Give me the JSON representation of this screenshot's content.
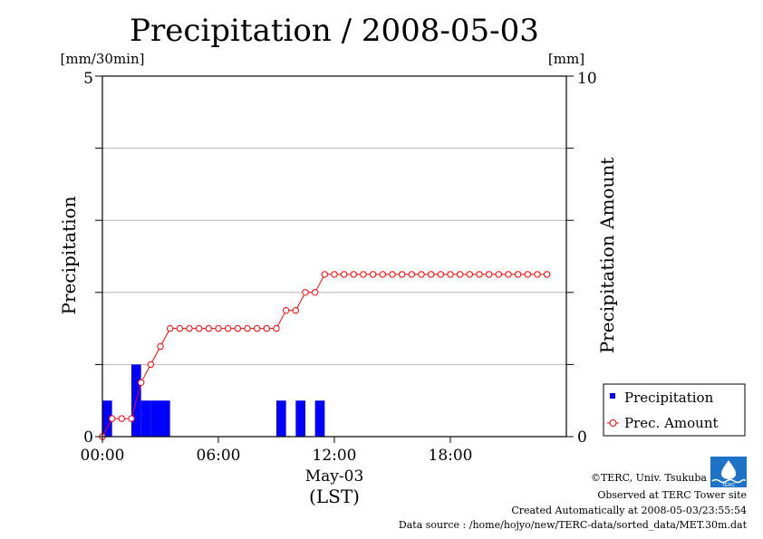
{
  "chart_data": {
    "type": "bar",
    "title": "Precipitation / 2008-05-03",
    "ylabel_left": "Precipitation",
    "ylabel_right": "Precipitation Amount",
    "unit_left": "[mm/30min]",
    "unit_right": "[mm]",
    "y_left_range": [
      0,
      5
    ],
    "y_right_range": [
      0,
      10
    ],
    "y_left_ticks": [
      "0",
      "5"
    ],
    "y_right_ticks": [
      "0",
      "10"
    ],
    "x_range_hours": [
      0,
      24
    ],
    "x_ticks": [
      {
        "hour": 0,
        "label": "00:00"
      },
      {
        "hour": 6,
        "label": "06:00"
      },
      {
        "hour": 12,
        "label": "12:00"
      },
      {
        "hour": 18,
        "label": "18:00"
      }
    ],
    "x_date_label": "May-03",
    "x_zone_label": "(LST)",
    "grid_y": true,
    "legend_position": "bottom-right",
    "series": [
      {
        "name": "Precipitation",
        "kind": "bar",
        "color": "#0000ff",
        "time_hours": [
          0.0,
          0.5,
          1.0,
          1.5,
          2.0,
          2.5,
          3.0,
          3.5,
          4.0,
          4.5,
          5.0,
          5.5,
          6.0,
          6.5,
          7.0,
          7.5,
          8.0,
          8.5,
          9.0,
          9.5,
          10.0,
          10.5,
          11.0,
          11.5,
          12.0,
          12.5,
          13.0,
          13.5,
          14.0,
          14.5,
          15.0,
          15.5,
          16.0,
          16.5,
          17.0,
          17.5,
          18.0,
          18.5,
          19.0,
          19.5,
          20.0,
          20.5,
          21.0,
          21.5,
          22.0,
          22.5,
          23.0
        ],
        "values": [
          0.5,
          0,
          0,
          1.0,
          0.5,
          0.5,
          0.5,
          0,
          0,
          0,
          0,
          0,
          0,
          0,
          0,
          0,
          0,
          0,
          0.5,
          0,
          0.5,
          0,
          0.5,
          0,
          0,
          0,
          0,
          0,
          0,
          0,
          0,
          0,
          0,
          0,
          0,
          0,
          0,
          0,
          0,
          0,
          0,
          0,
          0,
          0,
          0,
          0,
          0
        ]
      },
      {
        "name": "Prec. Amount",
        "kind": "line",
        "color": "#ff0000",
        "time_hours": [
          0.0,
          0.5,
          1.0,
          1.5,
          2.0,
          2.5,
          3.0,
          3.5,
          4.0,
          4.5,
          5.0,
          5.5,
          6.0,
          6.5,
          7.0,
          7.5,
          8.0,
          8.5,
          9.0,
          9.5,
          10.0,
          10.5,
          11.0,
          11.5,
          12.0,
          12.5,
          13.0,
          13.5,
          14.0,
          14.5,
          15.0,
          15.5,
          16.0,
          16.5,
          17.0,
          17.5,
          18.0,
          18.5,
          19.0,
          19.5,
          20.0,
          20.5,
          21.0,
          21.5,
          22.0,
          22.5,
          23.0
        ],
        "values": [
          0,
          0.5,
          0.5,
          0.5,
          1.5,
          2.0,
          2.5,
          3.0,
          3.0,
          3.0,
          3.0,
          3.0,
          3.0,
          3.0,
          3.0,
          3.0,
          3.0,
          3.0,
          3.0,
          3.5,
          3.5,
          4.0,
          4.0,
          4.5,
          4.5,
          4.5,
          4.5,
          4.5,
          4.5,
          4.5,
          4.5,
          4.5,
          4.5,
          4.5,
          4.5,
          4.5,
          4.5,
          4.5,
          4.5,
          4.5,
          4.5,
          4.5,
          4.5,
          4.5,
          4.5,
          4.5,
          4.5
        ]
      }
    ]
  },
  "legend": {
    "precipitation": "Precipitation",
    "amount": "Prec. Amount"
  },
  "footer": {
    "copyright": "©TERC, Univ. Tsukuba",
    "observed": "Observed at TERC Tower site",
    "created": "Created Automatically at 2008-05-03/23:55:54",
    "source": "Data source : /home/hojyo/new/TERC-data/sorted_data/MET.30m.dat",
    "logo_text": "TERC"
  },
  "colors": {
    "bar": "#0000ff",
    "line": "#ff0000",
    "grid": "#b4b4b4",
    "logo": "#1e73c8"
  }
}
